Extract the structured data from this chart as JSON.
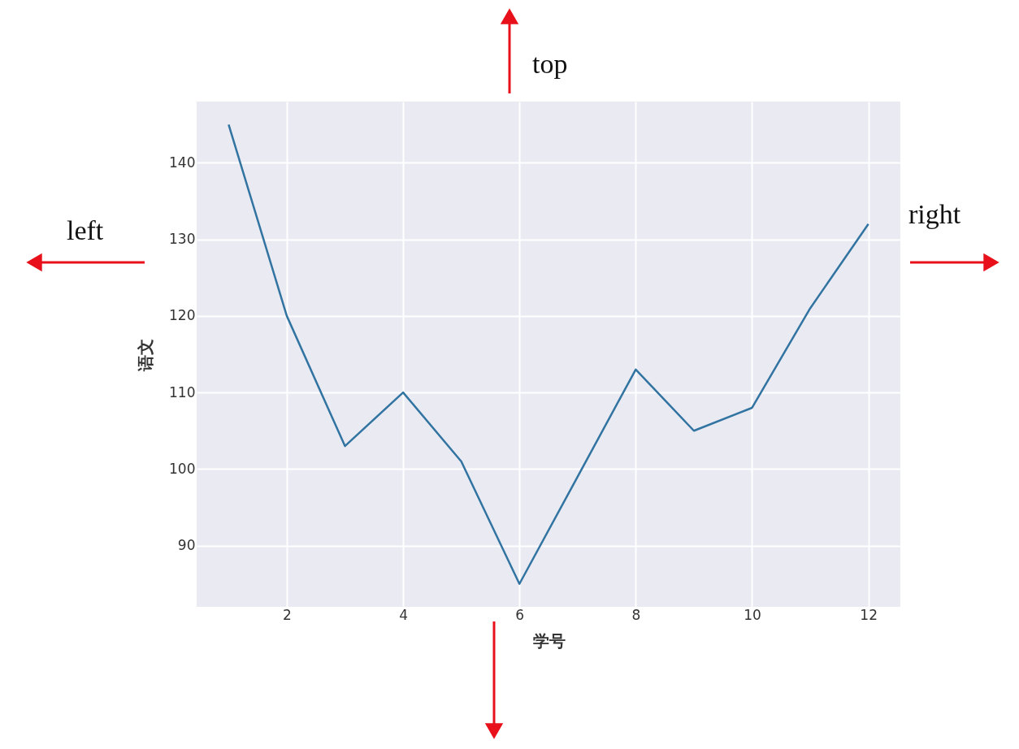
{
  "chart_data": {
    "type": "line",
    "xlabel": "学号",
    "ylabel": "语文",
    "x": [
      1,
      2,
      3,
      4,
      5,
      6,
      7,
      8,
      9,
      10,
      11,
      12
    ],
    "series": [
      {
        "color": "#3274a1",
        "values": [
          145,
          120,
          103,
          110,
          101,
          85,
          99,
          113,
          105,
          108,
          121,
          132
        ]
      }
    ],
    "xlim": [
      0.45,
      12.55
    ],
    "ylim": [
      82,
      148
    ],
    "xticks": [
      2,
      4,
      6,
      8,
      10,
      12
    ],
    "yticks": [
      90,
      100,
      110,
      120,
      130,
      140
    ],
    "grid": true,
    "line_style": "solid",
    "marker": "none",
    "annotations": [
      "top",
      "left",
      "right"
    ]
  }
}
